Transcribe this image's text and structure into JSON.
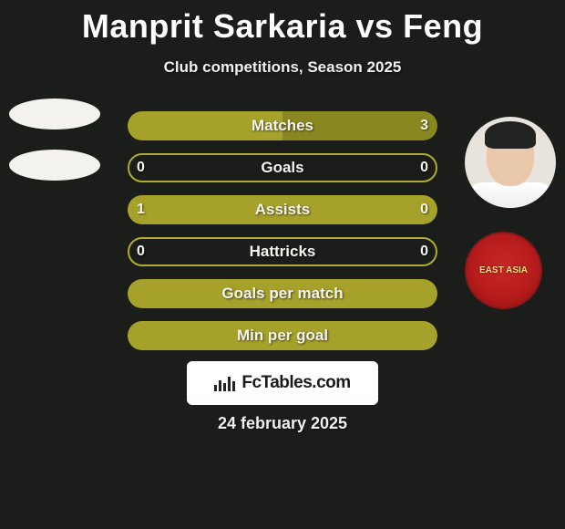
{
  "title": "Manprit Sarkaria vs Feng",
  "subtitle": "Club competitions, Season 2025",
  "date": "24 february 2025",
  "brand": "FcTables.com",
  "colors": {
    "accent": "#a5a12a",
    "accent_dark": "#8a8720",
    "outline": "#b0ab30",
    "background": "#1a1d1a",
    "badge_text": "#ffe082"
  },
  "player_left": {
    "name": "Manprit Sarkaria",
    "avatar_style": "ellipse-placeholder"
  },
  "player_right": {
    "name": "Feng",
    "avatar_style": "photo",
    "club_badge_text": "EAST ASIA"
  },
  "stats": [
    {
      "label": "Matches",
      "left_value": "",
      "right_value": "3",
      "left_fill_pct": 50,
      "right_fill_pct": 50,
      "style": "split-half"
    },
    {
      "label": "Goals",
      "left_value": "0",
      "right_value": "0",
      "left_fill_pct": 0,
      "right_fill_pct": 0,
      "style": "outline-only"
    },
    {
      "label": "Assists",
      "left_value": "1",
      "right_value": "0",
      "left_fill_pct": 100,
      "right_fill_pct": 0,
      "style": "full-left"
    },
    {
      "label": "Hattricks",
      "left_value": "0",
      "right_value": "0",
      "left_fill_pct": 0,
      "right_fill_pct": 0,
      "style": "outline-only"
    },
    {
      "label": "Goals per match",
      "left_value": "",
      "right_value": "",
      "left_fill_pct": 100,
      "right_fill_pct": 0,
      "style": "full"
    },
    {
      "label": "Min per goal",
      "left_value": "",
      "right_value": "",
      "left_fill_pct": 100,
      "right_fill_pct": 0,
      "style": "full"
    }
  ]
}
